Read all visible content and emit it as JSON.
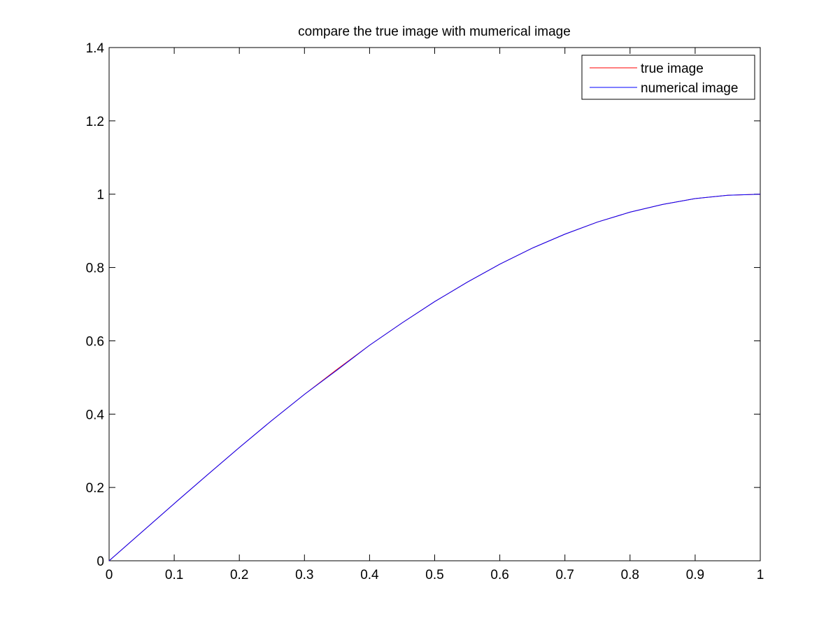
{
  "chart_data": {
    "type": "line",
    "title": "compare the true image with mumerical image",
    "xlabel": "",
    "ylabel": "",
    "xlim": [
      0,
      1
    ],
    "ylim": [
      0,
      1.4
    ],
    "xticks": [
      "0",
      "0.1",
      "0.2",
      "0.3",
      "0.4",
      "0.5",
      "0.6",
      "0.7",
      "0.8",
      "0.9",
      "1"
    ],
    "yticks": [
      "0",
      "0.2",
      "0.4",
      "0.6",
      "0.8",
      "1",
      "1.2",
      "1.4"
    ],
    "grid": false,
    "legend_position": "top-right",
    "x": [
      0,
      0.05,
      0.1,
      0.15,
      0.2,
      0.25,
      0.3,
      0.35,
      0.4,
      0.45,
      0.5,
      0.55,
      0.6,
      0.65,
      0.7,
      0.75,
      0.8,
      0.85,
      0.9,
      0.95,
      1
    ],
    "series": [
      {
        "name": "true image",
        "color": "#ff0000",
        "values": [
          0,
          0.078,
          0.156,
          0.233,
          0.309,
          0.383,
          0.454,
          0.522,
          0.588,
          0.649,
          0.707,
          0.76,
          0.809,
          0.853,
          0.891,
          0.924,
          0.951,
          0.972,
          0.988,
          0.997,
          1.0
        ]
      },
      {
        "name": "numerical image",
        "color": "#0000ff",
        "values": [
          0,
          0.078,
          0.156,
          0.233,
          0.309,
          0.383,
          0.454,
          0.52,
          0.588,
          0.649,
          0.707,
          0.76,
          0.809,
          0.853,
          0.891,
          0.924,
          0.951,
          0.972,
          0.988,
          0.997,
          1.0
        ]
      }
    ]
  }
}
